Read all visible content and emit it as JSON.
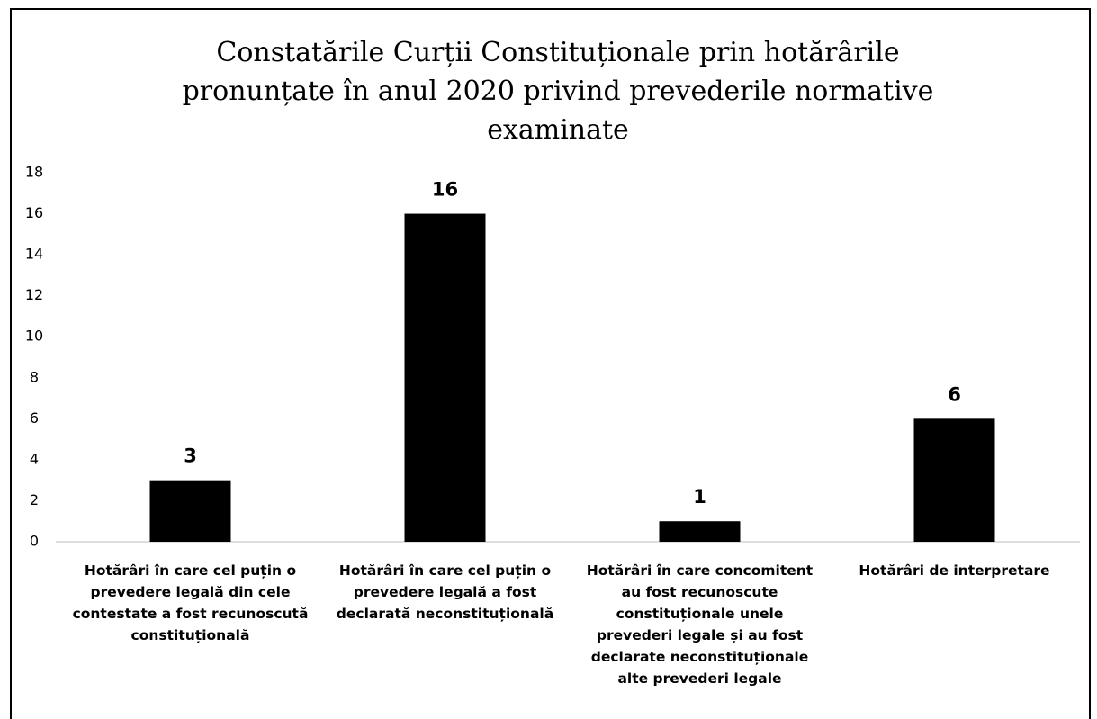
{
  "chart_data": {
    "type": "bar",
    "title": "Constatările Curții Constituționale prin hotărârile pronunțate în anul 2020 privind prevederile normative examinate",
    "categories": [
      "Hotărâri în care cel puțin o prevedere legală din cele contestate a  fost recunoscută constituțională",
      "Hotărâri în care cel puțin o prevedere legală a fost declarată neconstituțională",
      "Hotărâri în care concomitent au fost recunoscute constituționale unele prevederi legale și au fost declarate neconstituționale alte prevederi legale",
      "Hotărâri de interpretare"
    ],
    "values": [
      3,
      16,
      1,
      6
    ],
    "color": "#000000",
    "ylim": [
      0,
      18
    ],
    "yticks": [
      0,
      2,
      4,
      6,
      8,
      10,
      12,
      14,
      16,
      18
    ],
    "grid": false
  }
}
